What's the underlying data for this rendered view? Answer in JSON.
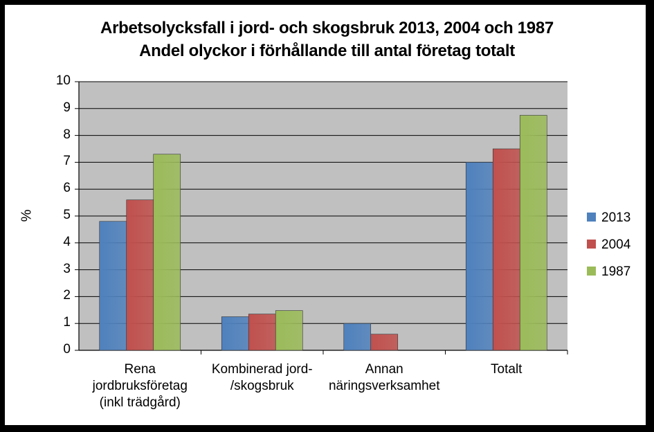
{
  "chart_data": {
    "type": "bar",
    "title": "Arbetsolycksfall i jord- och skogsbruk 2013, 2004 och 1987",
    "subtitle": "Andel olyckor i förhållande till antal företag totalt",
    "xlabel": "",
    "ylabel": "%",
    "ylim": [
      0,
      10
    ],
    "yticks": [
      "0",
      "1",
      "2",
      "3",
      "4",
      "5",
      "6",
      "7",
      "8",
      "9",
      "10"
    ],
    "grid": true,
    "legend_position": "right",
    "categories": [
      [
        "Rena",
        "jordbruksföretag",
        "(inkl trädgård)"
      ],
      [
        "Kombinerad jord-",
        "/skogsbruk"
      ],
      [
        "Annan",
        "näringsverksamhet"
      ],
      [
        "Totalt"
      ]
    ],
    "series": [
      {
        "name": "2013",
        "color": "#4F81BD",
        "values": [
          4.8,
          1.25,
          1.0,
          7.0
        ]
      },
      {
        "name": "2004",
        "color": "#C0504D",
        "values": [
          5.6,
          1.35,
          0.6,
          7.5
        ]
      },
      {
        "name": "1987",
        "color": "#9BBB59",
        "values": [
          7.3,
          1.48,
          0,
          8.75
        ]
      }
    ],
    "plot_background": "#C0C0C0"
  }
}
